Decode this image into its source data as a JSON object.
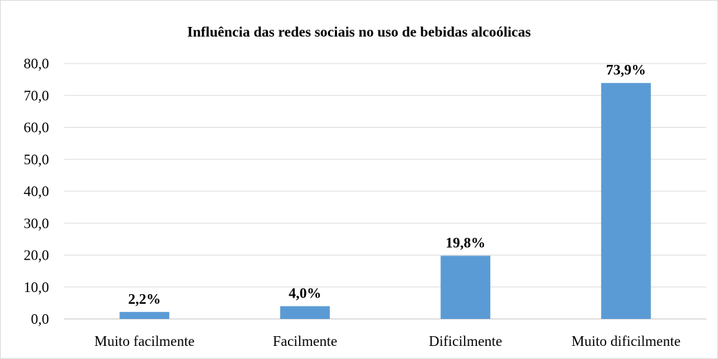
{
  "chart_data": {
    "type": "bar",
    "title": "Influência das redes sociais no uso de bebidas alcoólicas",
    "categories": [
      "Muito facilmente",
      "Facilmente",
      "Dificilmente",
      "Muito dificilmente"
    ],
    "values": [
      2.2,
      4.0,
      19.8,
      73.9
    ],
    "data_labels": [
      "2,2%",
      "4,0%",
      "19,8%",
      "73,9%"
    ],
    "yticks": [
      "0,0",
      "10,0",
      "20,0",
      "30,0",
      "40,0",
      "50,0",
      "60,0",
      "70,0",
      "80,0"
    ],
    "ylim": [
      0,
      80
    ],
    "grid": true,
    "legend": "none",
    "bar_color": "#5b9bd5"
  }
}
